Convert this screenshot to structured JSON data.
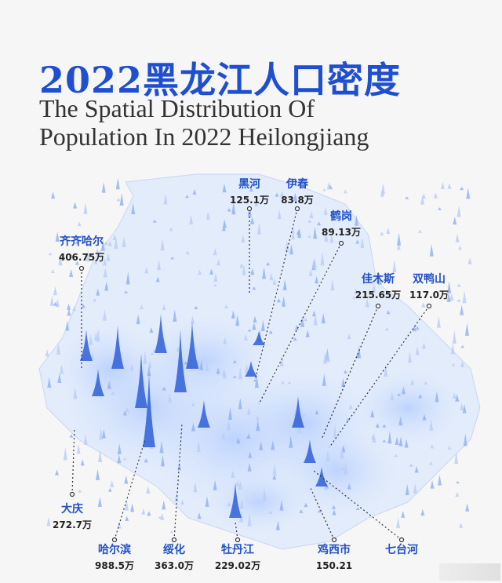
{
  "title": {
    "zh": "2022黑龙江人口密度",
    "en_line1": "The Spatial Distribution Of",
    "en_line2": "Population In 2022 Heilongjiang"
  },
  "colors": {
    "accent": "#1f4fd1",
    "leader": "#333333"
  },
  "cities": [
    {
      "id": "heihe",
      "name": "黑河",
      "population": "125.1万"
    },
    {
      "id": "yichun",
      "name": "伊春",
      "population": "83.8万"
    },
    {
      "id": "hegang",
      "name": "鹤岗",
      "population": "89.13万"
    },
    {
      "id": "qiqihar",
      "name": "齐齐哈尔",
      "population": "406.75万"
    },
    {
      "id": "jiamusi",
      "name": "佳木斯",
      "population": "215.65万"
    },
    {
      "id": "shuangyashan",
      "name": "双鸭山",
      "population": "117.0万"
    },
    {
      "id": "daqing",
      "name": "大庆",
      "population": "272.7万"
    },
    {
      "id": "harbin",
      "name": "哈尔滨",
      "population": "988.5万"
    },
    {
      "id": "suihua",
      "name": "绥化",
      "population": "363.0万"
    },
    {
      "id": "mudanjiang",
      "name": "牡丹江",
      "population": "229.02万"
    },
    {
      "id": "jixi",
      "name": "鸡西市",
      "population": "150.21"
    },
    {
      "id": "qitaihe",
      "name": "七台河",
      "population": ""
    }
  ]
}
